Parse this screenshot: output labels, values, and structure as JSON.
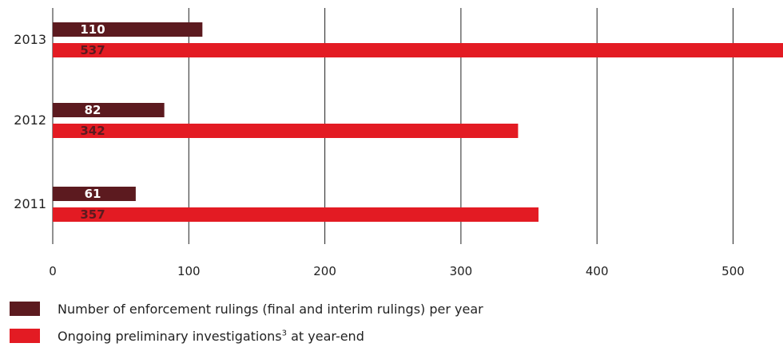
{
  "chart_data": {
    "type": "bar",
    "orientation": "horizontal",
    "categories": [
      "2013",
      "2012",
      "2011"
    ],
    "series": [
      {
        "name": "Number of enforcement rulings (final and interim rulings) per year",
        "values": [
          110,
          82,
          61
        ],
        "color": "#5c1a1f",
        "label_color": "#ffffff"
      },
      {
        "name": "Ongoing preliminary investigations³ at year-end",
        "values": [
          537,
          342,
          357
        ],
        "color": "#e31b23",
        "label_color": "#5c1a1f"
      }
    ],
    "xticks": [
      0,
      100,
      200,
      300,
      400,
      500
    ],
    "xlim": [
      0,
      537
    ],
    "grid": true,
    "legend_position": "bottom-left"
  },
  "legend": [
    {
      "text": "Number of enforcement rulings (final and interim rulings) per year",
      "sup": ""
    },
    {
      "text": "Ongoing preliminary investigations",
      "sup": "3",
      "suffix": " at year-end"
    }
  ]
}
